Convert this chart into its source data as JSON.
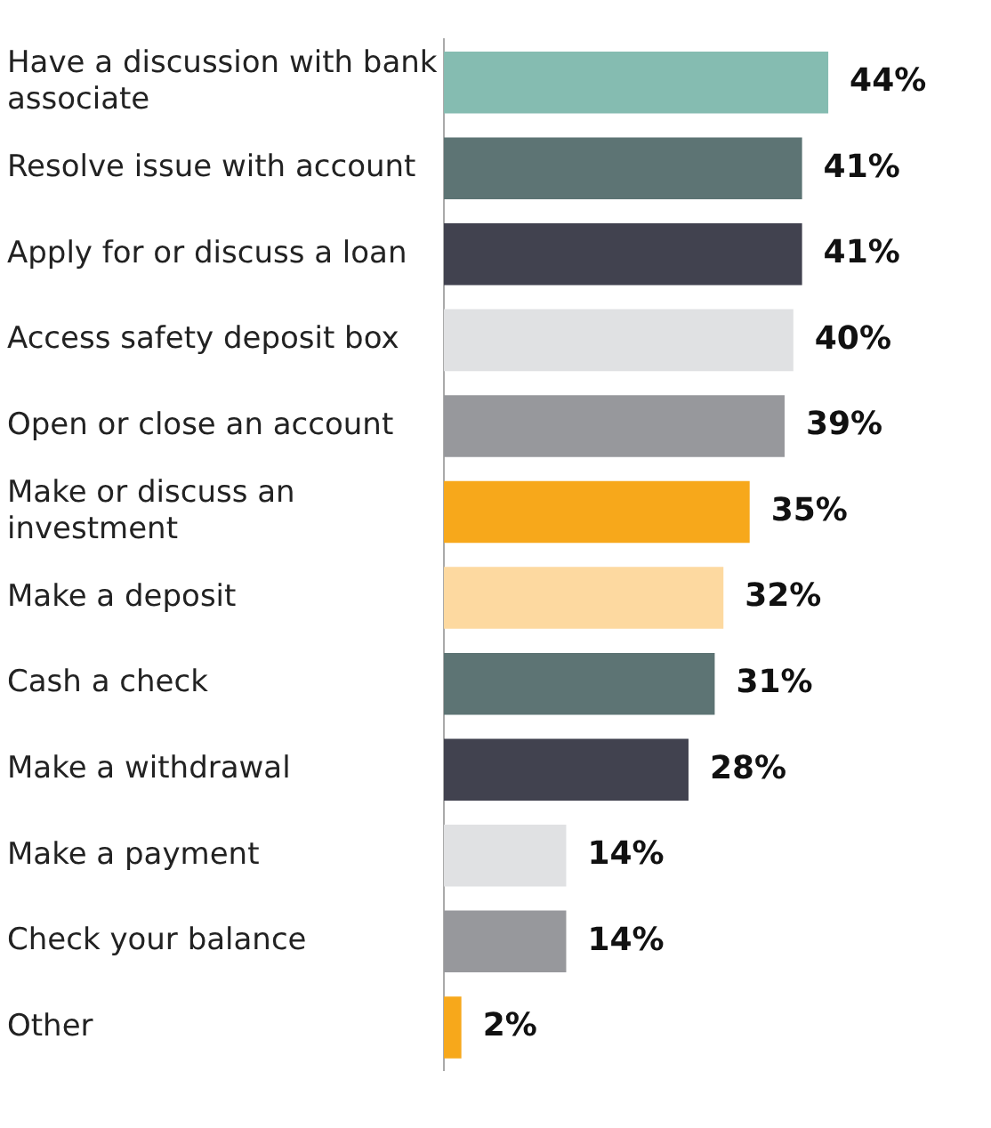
{
  "chart_data": {
    "type": "bar",
    "orientation": "horizontal",
    "categories": [
      "Have a discussion with bank associate",
      "Resolve issue with account",
      "Apply for or discuss a loan",
      "Access safety deposit box",
      "Open or close an account",
      "Make or discuss an investment",
      "Make a deposit",
      "Cash a check",
      "Make a withdrawal",
      "Make a payment",
      "Check your balance",
      "Other"
    ],
    "values": [
      44,
      41,
      41,
      40,
      39,
      35,
      32,
      31,
      28,
      14,
      14,
      2
    ],
    "value_labels": [
      "44%",
      "41%",
      "41%",
      "40%",
      "39%",
      "35%",
      "32%",
      "31%",
      "28%",
      "14%",
      "14%",
      "2%"
    ],
    "colors": [
      "#85bcb1",
      "#5d7474",
      "#41424f",
      "#e0e1e3",
      "#97989c",
      "#f7a81b",
      "#fdd9a0",
      "#5d7474",
      "#41424f",
      "#e0e1e3",
      "#97989c",
      "#f7a81b"
    ],
    "legend": false
  }
}
